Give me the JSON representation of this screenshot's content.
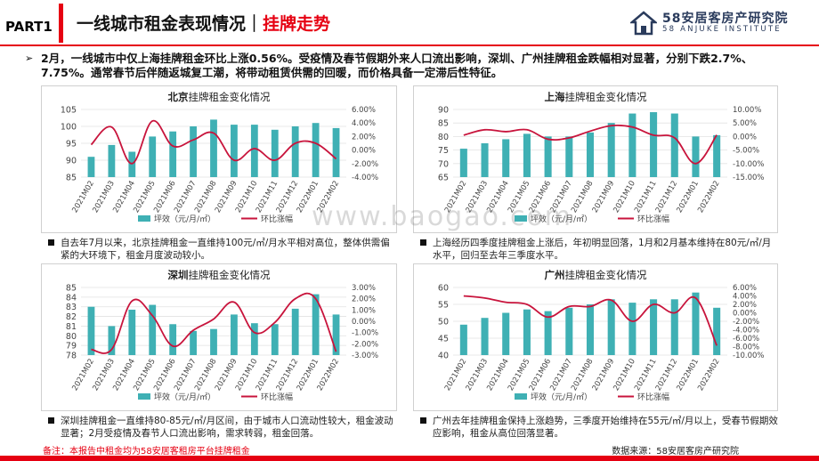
{
  "header": {
    "part": "PART1",
    "title_main": "一线城市租金表现情况｜",
    "title_highlight": "挂牌走势",
    "logo_text": "58安居客房产研究院",
    "logo_sub": "58 ANJUKE INSTITUTE"
  },
  "summary": "2月，一线城市中仅上海挂牌租金环比上涨0.56%。受疫情及春节假期外来人口流出影响，深圳、广州挂牌租金跌幅相对显著，分别下跌2.7%、7.75%。通常春节后伴随返城复工潮，将带动租赁供需的回暖，而价格具备一定滞后性特征。",
  "colors": {
    "bar": "#3fb0b4",
    "line": "#c8143c",
    "accent": "#e60012"
  },
  "legend": {
    "bar": "坪效（元/月/㎡）",
    "line": "环比涨幅"
  },
  "notes": {
    "beijing": "自去年7月以来，北京挂牌租金一直维持100元/㎡/月水平相对高位，整体供需偏紧的大环境下，租金月度波动较小。",
    "shanghai": "上海经历四季度挂牌租金上涨后，年初明显回落，1月和2月基本维持在80元/㎡/月水平，回归至去年三季度水平。",
    "shenzhen": "深圳挂牌租金一直维持80-85元/㎡/月区间，由于城市人口流动性较大，租金波动显著；2月受疫情及春节人口流出影响，需求转弱，租金回落。",
    "guangzhou": "广州去年挂牌租金保持上涨趋势，三季度开始维持在55元/㎡/月以上，受春节假期效应影响，租金从高位回落显著。"
  },
  "footer": {
    "left": "备注：本报告中租金均为58安居客租房平台挂牌租金",
    "right": "数据来源：58安居客房产研究院"
  },
  "watermark": "www.baogao.com",
  "chart_data": [
    {
      "type": "bar",
      "city": "北京",
      "title_bold": "北京",
      "title_rest": "挂牌租金变化情况",
      "categories": [
        "2021M02",
        "2021M03",
        "2021M04",
        "2021M05",
        "2021M06",
        "2021M07",
        "2021M08",
        "2021M09",
        "2021M10",
        "2021M11",
        "2021M12",
        "2022M01",
        "2022M02"
      ],
      "series": [
        {
          "name": "坪效（元/月/㎡）",
          "axis": "left",
          "values": [
            91,
            94.5,
            92.5,
            97,
            98.5,
            100,
            102,
            100.5,
            100.5,
            99,
            100,
            101,
            99.5
          ]
        },
        {
          "name": "环比涨幅",
          "axis": "right",
          "type": "line",
          "values": [
            0.8,
            3.4,
            -2.0,
            4.3,
            0.6,
            1.5,
            2.5,
            -1.5,
            0.2,
            -1.5,
            1.0,
            1.0,
            -1.3
          ]
        }
      ],
      "ylim_left": [
        85,
        105
      ],
      "yticks_left": [
        85,
        90,
        95,
        100,
        105
      ],
      "ylim_right": [
        -4,
        6
      ],
      "yticks_right": [
        "-4.00%",
        "-2.00%",
        "0.00%",
        "2.00%",
        "4.00%",
        "6.00%"
      ],
      "yticks_right_values": [
        -4,
        -2,
        0,
        2,
        4,
        6
      ]
    },
    {
      "type": "bar",
      "city": "上海",
      "title_bold": "上海",
      "title_rest": "挂牌租金变化情况",
      "categories": [
        "2021M02",
        "2021M03",
        "2021M04",
        "2021M05",
        "2021M06",
        "2021M07",
        "2021M08",
        "2021M09",
        "2021M10",
        "2021M11",
        "2021M12",
        "2022M01",
        "2022M02"
      ],
      "series": [
        {
          "name": "坪效（元/月/㎡）",
          "axis": "left",
          "values": [
            75.5,
            77.5,
            79,
            81,
            80,
            80,
            81.5,
            85,
            88.5,
            89,
            88.5,
            80,
            80.5
          ]
        },
        {
          "name": "环比涨幅",
          "axis": "right",
          "type": "line",
          "values": [
            0.5,
            2.5,
            1.8,
            2.5,
            -1.0,
            -0.5,
            2.0,
            4.0,
            3.5,
            0.5,
            -0.5,
            -10.0,
            0.56
          ]
        }
      ],
      "ylim_left": [
        65,
        90
      ],
      "yticks_left": [
        65,
        70,
        75,
        80,
        85,
        90
      ],
      "ylim_right": [
        -15,
        10
      ],
      "yticks_right": [
        "-15.00%",
        "-10.00%",
        "-5.00%",
        "0.00%",
        "5.00%",
        "10.00%"
      ],
      "yticks_right_values": [
        -15,
        -10,
        -5,
        0,
        5,
        10
      ]
    },
    {
      "type": "bar",
      "city": "深圳",
      "title_bold": "深圳",
      "title_rest": "挂牌租金变化情况",
      "categories": [
        "2021M02",
        "2021M03",
        "2021M04",
        "2021M05",
        "2021M06",
        "2021M07",
        "2021M08",
        "2021M09",
        "2021M10",
        "2021M11",
        "2021M12",
        "2022M01",
        "2022M02"
      ],
      "series": [
        {
          "name": "坪效（元/月/㎡）",
          "axis": "left",
          "values": [
            83,
            81,
            82.7,
            83.2,
            81.2,
            80.5,
            80.7,
            82.2,
            81.3,
            81.2,
            82.8,
            84.3,
            82.2
          ]
        },
        {
          "name": "环比涨幅",
          "axis": "right",
          "type": "line",
          "values": [
            -2.5,
            -2.5,
            1.8,
            0.5,
            -2.2,
            -0.8,
            0.2,
            1.7,
            -1.0,
            -0.1,
            2.0,
            2.0,
            -2.7
          ]
        }
      ],
      "ylim_left": [
        78,
        85
      ],
      "yticks_left": [
        78,
        79,
        80,
        81,
        82,
        83,
        84,
        85
      ],
      "ylim_right": [
        -3,
        3
      ],
      "yticks_right": [
        "-3.00%",
        "-2.00%",
        "-1.00%",
        "0.00%",
        "1.00%",
        "2.00%",
        "3.00%"
      ],
      "yticks_right_values": [
        -3,
        -2,
        -1,
        0,
        1,
        2,
        3
      ]
    },
    {
      "type": "bar",
      "city": "广州",
      "title_bold": "广州",
      "title_rest": "挂牌租金变化情况",
      "categories": [
        "2021M02",
        "2021M03",
        "2021M04",
        "2021M05",
        "2021M06",
        "2021M07",
        "2021M08",
        "2021M09",
        "2021M10",
        "2021M11",
        "2021M12",
        "2022M01",
        "2022M02"
      ],
      "series": [
        {
          "name": "坪效（元/月/㎡）",
          "axis": "left",
          "values": [
            49,
            51,
            52.5,
            53.5,
            53,
            54,
            55,
            56.5,
            55.5,
            56.5,
            56.5,
            58.5,
            54
          ]
        },
        {
          "name": "环比涨幅",
          "axis": "right",
          "type": "line",
          "values": [
            4.0,
            3.5,
            2.5,
            2.0,
            -1.0,
            1.5,
            1.5,
            3.0,
            -2.0,
            2.0,
            0.0,
            3.5,
            -7.75
          ]
        }
      ],
      "ylim_left": [
        40,
        60
      ],
      "yticks_left": [
        40,
        45,
        50,
        55,
        60
      ],
      "ylim_right": [
        -10,
        6
      ],
      "yticks_right": [
        "-10.00%",
        "-8.00%",
        "-6.00%",
        "-4.00%",
        "-2.00%",
        "0.00%",
        "2.00%",
        "4.00%",
        "6.00%"
      ],
      "yticks_right_values": [
        -10,
        -8,
        -6,
        -4,
        -2,
        0,
        2,
        4,
        6
      ]
    }
  ]
}
